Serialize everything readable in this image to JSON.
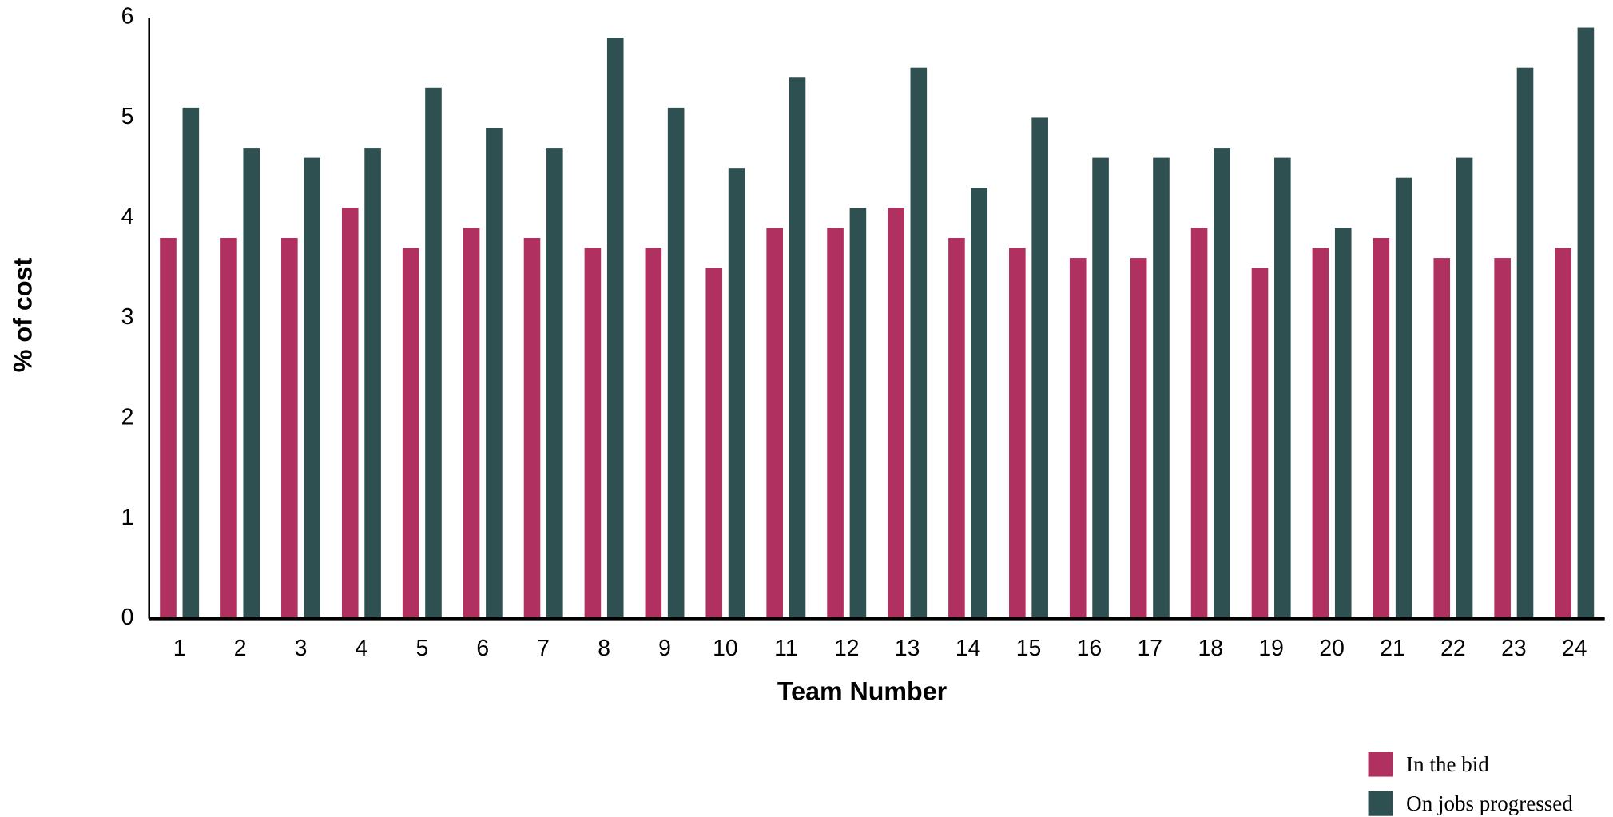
{
  "chart_data": {
    "type": "bar",
    "x_label": "Team Number",
    "y_label": "% of cost",
    "categories": [
      "1",
      "2",
      "3",
      "4",
      "5",
      "6",
      "7",
      "8",
      "9",
      "10",
      "11",
      "12",
      "13",
      "14",
      "15",
      "16",
      "17",
      "18",
      "19",
      "20",
      "21",
      "22",
      "23",
      "24"
    ],
    "series": [
      {
        "name": "In the bid",
        "color": "#b03060",
        "values": [
          3.8,
          3.8,
          3.8,
          4.1,
          3.7,
          3.9,
          3.8,
          3.7,
          3.7,
          3.5,
          3.9,
          3.9,
          4.1,
          3.8,
          3.7,
          3.6,
          3.6,
          3.9,
          3.5,
          3.7,
          3.8,
          3.6,
          3.6,
          3.7
        ]
      },
      {
        "name": "On jobs progressed",
        "color": "#2f5050",
        "values": [
          5.1,
          4.7,
          4.6,
          4.7,
          5.3,
          4.9,
          4.7,
          5.8,
          5.1,
          4.5,
          5.4,
          4.1,
          5.5,
          4.3,
          5.0,
          4.6,
          4.6,
          4.7,
          4.6,
          3.9,
          4.4,
          4.6,
          5.5,
          5.9
        ]
      }
    ],
    "ylim": [
      0,
      6
    ],
    "yticks": [
      0,
      1,
      2,
      3,
      4,
      5,
      6
    ],
    "grid": false,
    "legend": "lower right"
  }
}
